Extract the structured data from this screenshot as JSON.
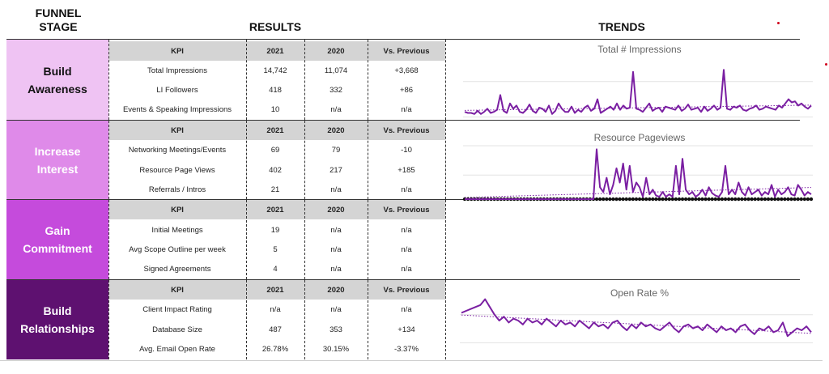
{
  "headers": {
    "funnel_line1": "FUNNEL",
    "funnel_line2": "STAGE",
    "results": "RESULTS",
    "trends": "TRENDS"
  },
  "colors": {
    "awareness": "#efc3f3",
    "interest": "#df8ae9",
    "commitment": "#c54bdc",
    "relationships": "#5e1170",
    "line": "#7a1fa2"
  },
  "stages": [
    {
      "line1": "Build",
      "line2": "Awareness"
    },
    {
      "line1": "Increase",
      "line2": "Interest"
    },
    {
      "line1": "Gain",
      "line2": "Commitment"
    },
    {
      "line1": "Build",
      "line2": "Relationships"
    }
  ],
  "tables": [
    {
      "head": [
        "KPI",
        "2021",
        "2020",
        "Vs. Previous"
      ],
      "rows": [
        [
          "Total Impressions",
          "14,742",
          "11,074",
          "+3,668"
        ],
        [
          "LI Followers",
          "418",
          "332",
          "+86"
        ],
        [
          "Events & Speaking Impressions",
          "10",
          "n/a",
          "n/a"
        ]
      ]
    },
    {
      "head": [
        "KPI",
        "2021",
        "2020",
        "Vs. Previous"
      ],
      "rows": [
        [
          "Networking Meetings/Events",
          "69",
          "79",
          "-10"
        ],
        [
          "Resource Page Views",
          "402",
          "217",
          "+185"
        ],
        [
          "Referrals / Intros",
          "21",
          "n/a",
          "n/a"
        ]
      ]
    },
    {
      "head": [
        "KPI",
        "2021",
        "2020",
        "Vs. Previous"
      ],
      "rows": [
        [
          "Initial Meetings",
          "19",
          "n/a",
          "n/a"
        ],
        [
          "Avg Scope Outline per week",
          "5",
          "n/a",
          "n/a"
        ],
        [
          "Signed Agreements",
          "4",
          "n/a",
          "n/a"
        ]
      ]
    },
    {
      "head": [
        "KPI",
        "2021",
        "2020",
        "Vs. Previous"
      ],
      "rows": [
        [
          "Client Impact Rating",
          "n/a",
          "n/a",
          "n/a"
        ],
        [
          "Database Size",
          "487",
          "353",
          "+134"
        ],
        [
          "Avg. Email Open Rate",
          "26.78%",
          "30.15%",
          "-3.37%"
        ]
      ]
    }
  ],
  "chart_data": [
    {
      "type": "line",
      "title": "Total # Impressions",
      "ylim": [
        0,
        60
      ],
      "values": [
        6,
        5,
        5,
        4,
        7,
        4,
        6,
        9,
        5,
        6,
        8,
        22,
        7,
        5,
        14,
        9,
        12,
        6,
        5,
        8,
        13,
        7,
        5,
        10,
        9,
        6,
        12,
        4,
        7,
        14,
        9,
        6,
        6,
        11,
        5,
        8,
        6,
        10,
        12,
        7,
        9,
        18,
        5,
        7,
        9,
        11,
        8,
        14,
        8,
        12,
        9,
        10,
        44,
        9,
        8,
        6,
        10,
        14,
        7,
        9,
        10,
        6,
        11,
        10,
        9,
        8,
        12,
        7,
        9,
        13,
        8,
        9,
        10,
        6,
        11,
        7,
        9,
        12,
        8,
        10,
        46,
        9,
        8,
        11,
        10,
        12,
        8,
        7,
        9,
        10,
        12,
        8,
        9,
        11,
        10,
        9,
        8,
        12,
        10,
        14,
        18,
        15,
        16,
        12,
        14,
        11,
        9,
        12
      ]
    },
    {
      "type": "line",
      "title": "Resource Pageviews",
      "ylim": [
        0,
        45
      ],
      "values": [
        0,
        0,
        0,
        0,
        0,
        0,
        0,
        0,
        0,
        0,
        0,
        0,
        0,
        0,
        0,
        0,
        0,
        0,
        0,
        0,
        0,
        0,
        0,
        0,
        0,
        0,
        0,
        0,
        0,
        0,
        0,
        0,
        0,
        0,
        0,
        0,
        0,
        0,
        0,
        0,
        42,
        10,
        6,
        18,
        4,
        12,
        26,
        14,
        30,
        8,
        28,
        6,
        14,
        10,
        2,
        18,
        4,
        8,
        3,
        2,
        6,
        2,
        4,
        2,
        28,
        4,
        34,
        8,
        4,
        6,
        2,
        4,
        8,
        3,
        10,
        5,
        3,
        2,
        6,
        28,
        4,
        8,
        4,
        14,
        6,
        3,
        10,
        4,
        6,
        8,
        3,
        6,
        4,
        12,
        2,
        8,
        4,
        6,
        10,
        4,
        3,
        12,
        8,
        3,
        6,
        4
      ]
    },
    {
      "type": "line",
      "title": "Open Rate %",
      "ylim": [
        15,
        45
      ],
      "values": [
        34,
        35,
        36,
        37,
        38,
        41,
        37,
        33,
        30,
        32,
        29,
        31,
        30,
        28,
        31,
        29,
        30,
        28,
        31,
        29,
        27,
        30,
        28,
        29,
        27,
        30,
        28,
        26,
        29,
        27,
        28,
        26,
        29,
        30,
        27,
        25,
        28,
        26,
        29,
        27,
        28,
        26,
        25,
        27,
        29,
        26,
        24,
        27,
        28,
        26,
        27,
        25,
        28,
        26,
        24,
        27,
        25,
        26,
        24,
        27,
        28,
        25,
        23,
        26,
        25,
        27,
        24,
        25,
        29,
        22,
        24,
        26,
        25,
        27,
        24
      ]
    }
  ]
}
